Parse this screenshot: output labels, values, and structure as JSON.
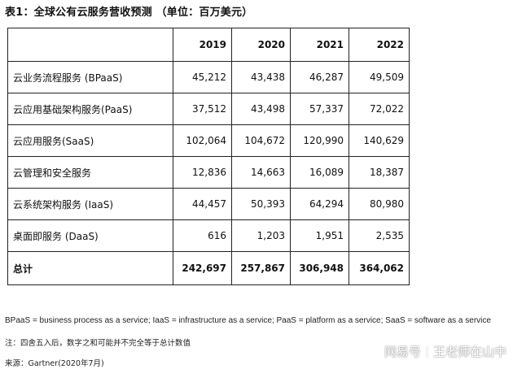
{
  "title": "表1：全球公有云服务营收预测 （单位：百万美元）",
  "table": {
    "headers": [
      "",
      "2019",
      "2020",
      "2021",
      "2022"
    ],
    "rows": [
      {
        "label": "云业务流程服务 (BPaaS)",
        "values": [
          "45,212",
          "43,438",
          "46,287",
          "49,509"
        ]
      },
      {
        "label": "云应用基础架构服务(PaaS)",
        "values": [
          "37,512",
          "43,498",
          "57,337",
          "72,022"
        ]
      },
      {
        "label": "云应用服务(SaaS)",
        "values": [
          "102,064",
          "104,672",
          "120,990",
          "140,629"
        ]
      },
      {
        "label": "云管理和安全服务",
        "values": [
          "12,836",
          "14,663",
          "16,089",
          "18,387"
        ]
      },
      {
        "label": "云系统架构服务 (IaaS)",
        "values": [
          "44,457",
          "50,393",
          "64,294",
          "80,980"
        ]
      },
      {
        "label": "桌面即服务 (DaaS)",
        "values": [
          "616",
          "1,203",
          "1,951",
          "2,535"
        ]
      }
    ],
    "total": {
      "label": "总计",
      "values": [
        "242,697",
        "257,867",
        "306,948",
        "364,062"
      ]
    }
  },
  "notes": {
    "abbreviations": "BPaaS = business process as a service; IaaS = infrastructure as a service; PaaS = platform as a service; SaaS = software as a service",
    "rounding": "注：四舍五入后，数字之和可能并不完全等于总计数值",
    "source": "来源：Gartner(2020年7月)"
  },
  "watermark": {
    "platform": "网易号",
    "author": "王老师在山中"
  }
}
